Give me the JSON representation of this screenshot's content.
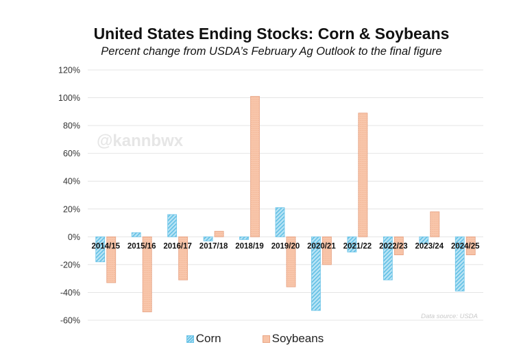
{
  "chart_data": {
    "type": "bar",
    "title": "United States Ending Stocks: Corn & Soybeans",
    "subtitle": "Percent change from USDA’s February Ag Outlook to the final figure",
    "xlabel": "",
    "ylabel": "",
    "ylim": [
      -60,
      120
    ],
    "yticks": [
      120,
      100,
      80,
      60,
      40,
      20,
      0,
      -20,
      -40,
      -60
    ],
    "ytick_labels": [
      "120%",
      "100%",
      "80%",
      "60%",
      "40%",
      "20%",
      "0%",
      "-20%",
      "-40%",
      "-60%"
    ],
    "grid": true,
    "categories": [
      "2014/15",
      "2015/16",
      "2016/17",
      "2017/18",
      "2018/19",
      "2019/20",
      "2020/21",
      "2021/22",
      "2022/23",
      "2023/24",
      "2024/25"
    ],
    "series": [
      {
        "name": "Corn",
        "color": "#a8dcf0",
        "values": [
          -18,
          3,
          16,
          -3,
          -2,
          21,
          -53,
          -11,
          -31,
          -5,
          -39
        ]
      },
      {
        "name": "Soybeans",
        "color": "#f8c4a8",
        "values": [
          -33,
          -54,
          -31,
          4,
          101,
          -36,
          -20,
          89,
          -13,
          18,
          -13
        ]
      }
    ],
    "legend": "bottom",
    "watermark": "@kannbwx",
    "source_note": "Data source: USDA"
  }
}
